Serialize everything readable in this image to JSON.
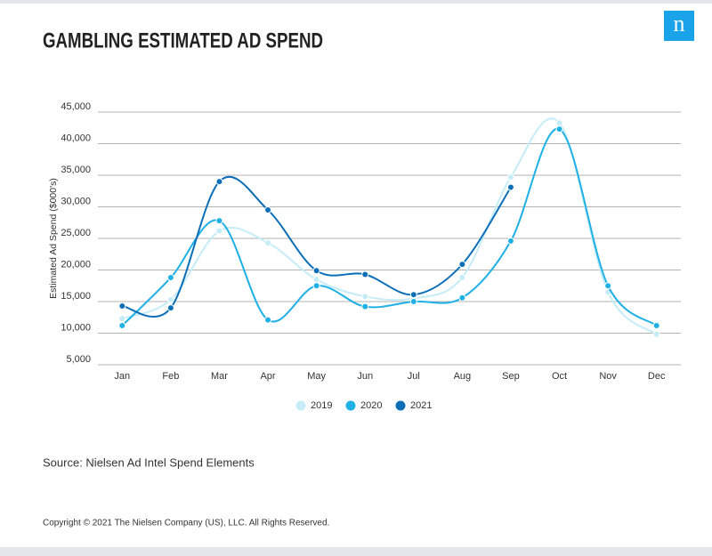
{
  "logo": "n",
  "chart_data": {
    "type": "line",
    "title": "GAMBLING ESTIMATED AD SPEND",
    "ylabel": "Estimated Ad Spend ($000's)",
    "categories": [
      "Jan",
      "Feb",
      "Mar",
      "Apr",
      "May",
      "Jun",
      "Jul",
      "Aug",
      "Sep",
      "Oct",
      "Nov",
      "Dec"
    ],
    "series": [
      {
        "name": "2019",
        "color": "#c5ecf7",
        "values": [
          12300,
          15300,
          26200,
          24300,
          18500,
          15800,
          15500,
          18800,
          34700,
          43300,
          16500,
          9800
        ]
      },
      {
        "name": "2020",
        "color": "#1fb0e6",
        "values": [
          11200,
          18800,
          27800,
          12100,
          17500,
          14200,
          15000,
          15600,
          24600,
          42300,
          17500,
          11200
        ]
      },
      {
        "name": "2021",
        "color": "#0b6fb8",
        "values": [
          14300,
          14000,
          34000,
          29500,
          19900,
          19300,
          16100,
          20900,
          33100,
          null,
          null,
          null
        ]
      }
    ],
    "ylim": [
      5000,
      45000
    ],
    "yticks": [
      {
        "value": 5000,
        "label": "5,000"
      },
      {
        "value": 10000,
        "label": "10,000"
      },
      {
        "value": 15000,
        "label": "15,000"
      },
      {
        "value": 20000,
        "label": "20,000"
      },
      {
        "value": 25000,
        "label": "25,000"
      },
      {
        "value": 30000,
        "label": "30,000"
      },
      {
        "value": 35000,
        "label": "35,000"
      },
      {
        "value": 40000,
        "label": "40,000"
      },
      {
        "value": 45000,
        "label": "45,000"
      }
    ],
    "grid": true,
    "source": "Source: Nielsen Ad Intel Spend Elements",
    "copyright": "Copyright © 2021 The Nielsen Company (US), LLC. All Rights Reserved."
  }
}
